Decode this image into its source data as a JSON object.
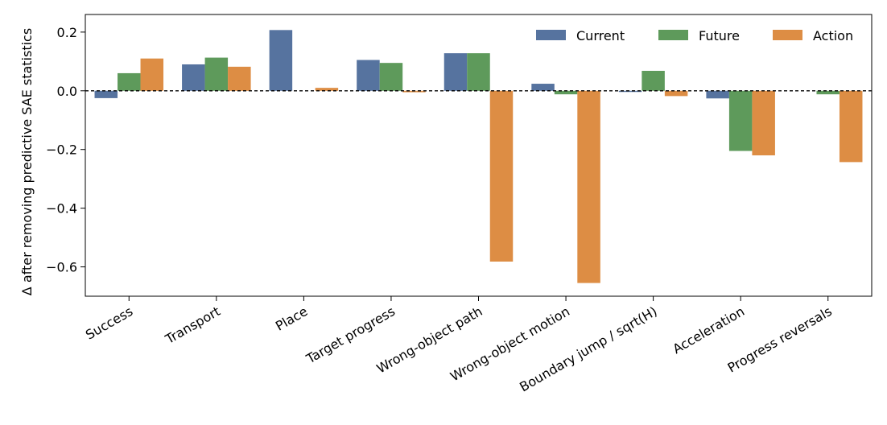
{
  "chart_data": {
    "type": "bar",
    "title": "",
    "xlabel": "",
    "ylabel": "Δ after removing predictive SAE statistics",
    "ylim": [
      -0.7,
      0.26
    ],
    "yticks": [
      -0.6,
      -0.4,
      -0.2,
      0.0,
      0.2
    ],
    "ytick_labels": [
      "−0.6",
      "−0.4",
      "−0.2",
      "0.0",
      "0.2"
    ],
    "grid": false,
    "zero_line": "dashed",
    "legend_position": "top-right",
    "categories": [
      "Success",
      "Transport",
      "Place",
      "Target progress",
      "Wrong-object path",
      "Wrong-object motion",
      "Boundary jump / sqrt(H)",
      "Acceleration",
      "Progress reversals"
    ],
    "series": [
      {
        "name": "Current",
        "color": "#56739f",
        "values": [
          -0.025,
          0.09,
          0.207,
          0.105,
          0.128,
          0.024,
          -0.004,
          -0.026,
          0.0
        ]
      },
      {
        "name": "Future",
        "color": "#5e9a5b",
        "values": [
          0.06,
          0.113,
          0.0,
          0.095,
          0.128,
          -0.012,
          0.068,
          -0.205,
          -0.012
        ]
      },
      {
        "name": "Action",
        "color": "#dd8d44",
        "values": [
          0.11,
          0.082,
          0.01,
          -0.005,
          -0.582,
          -0.655,
          -0.018,
          -0.22,
          -0.243
        ]
      }
    ]
  }
}
